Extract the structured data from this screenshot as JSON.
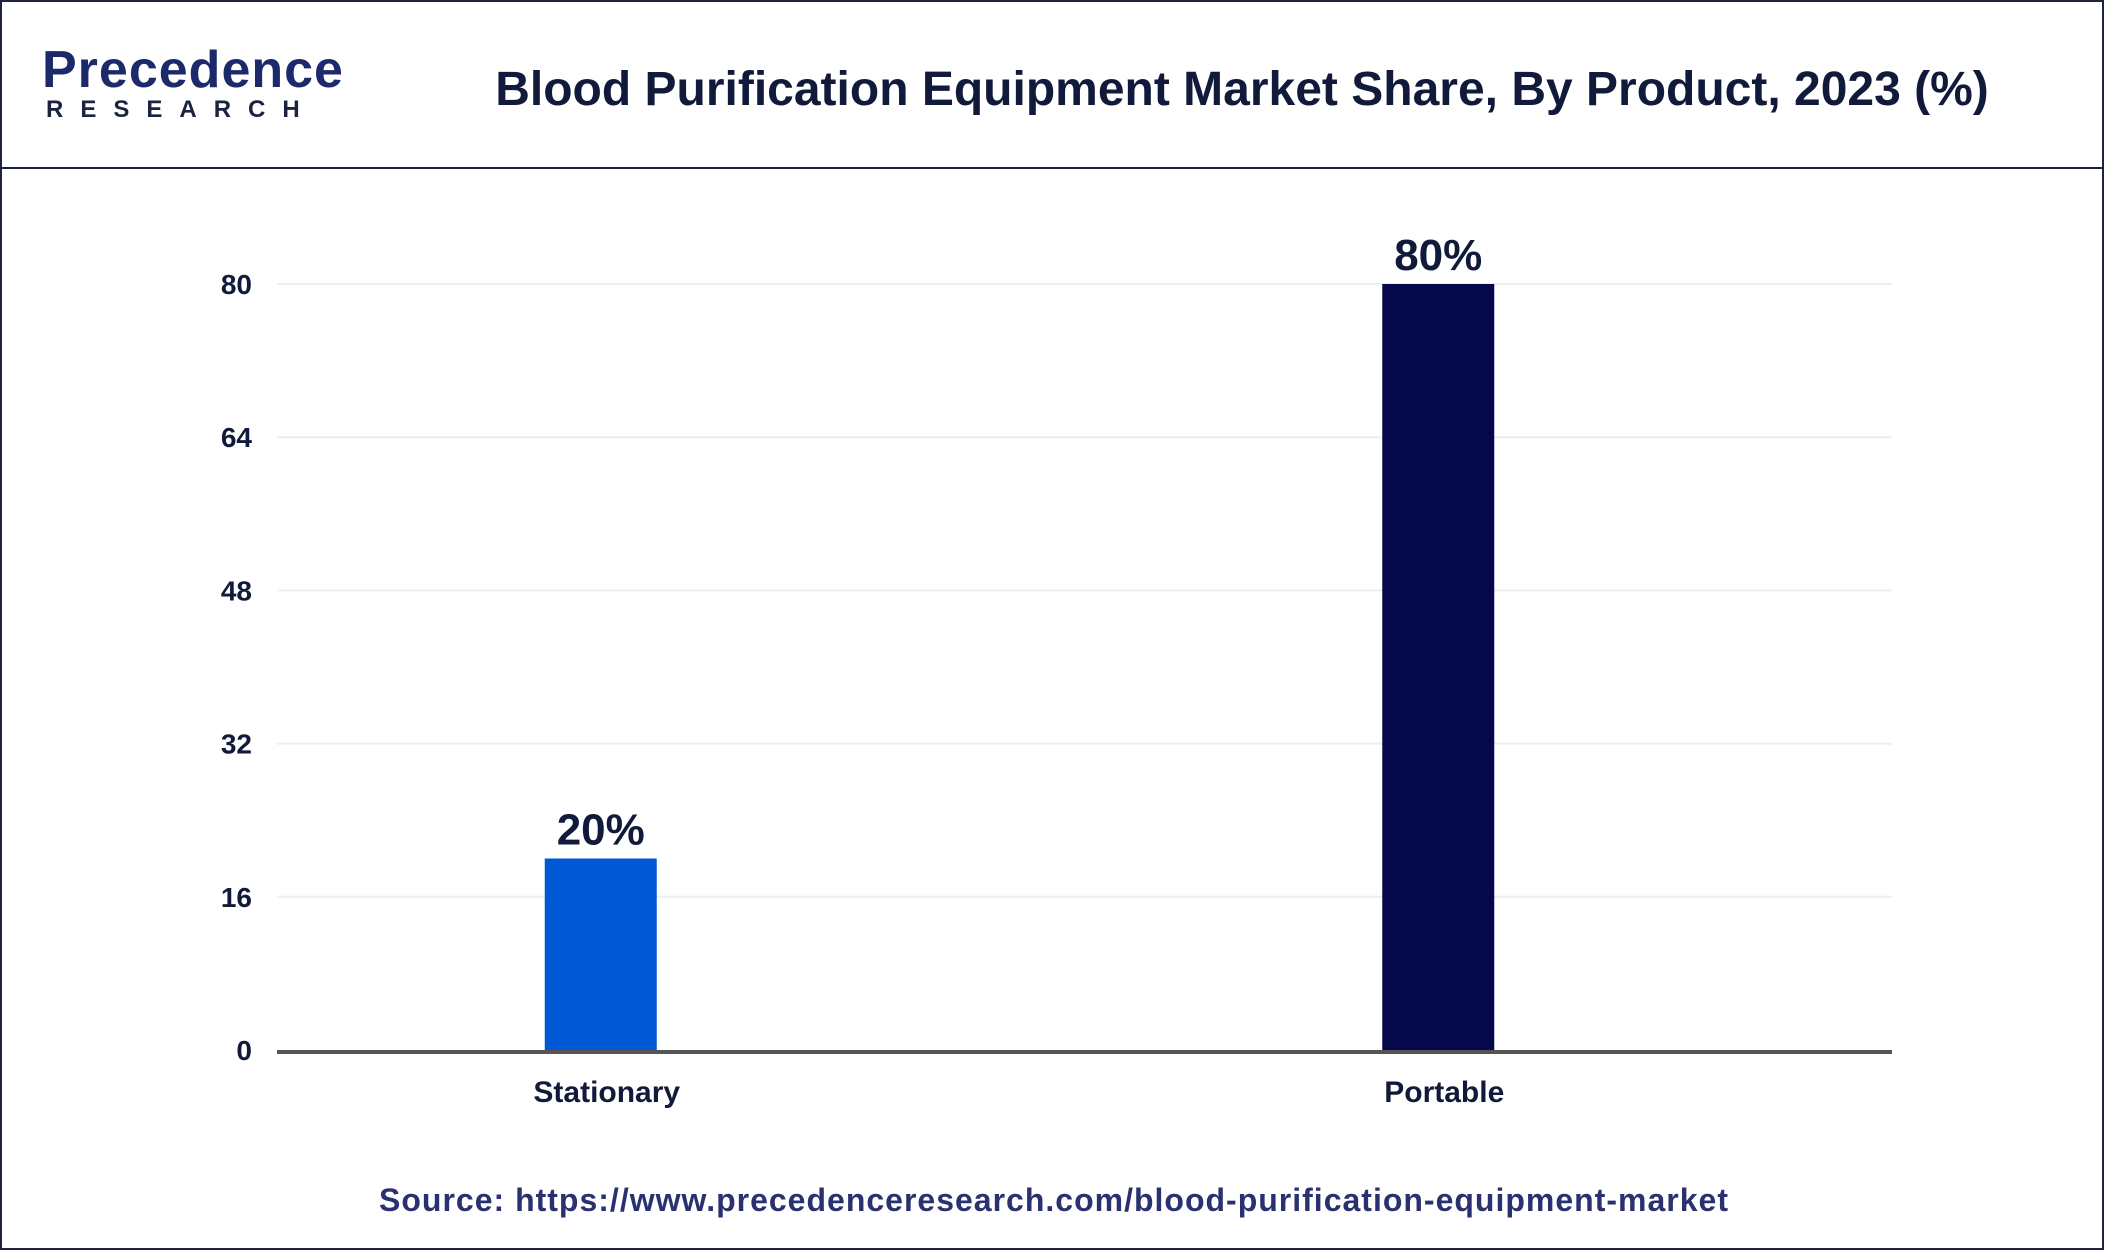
{
  "header": {
    "logo_word": "Precedence",
    "logo_sub": "RESEARCH",
    "title": "Blood Purification Equipment Market Share, By Product, 2023 (%)"
  },
  "footer": {
    "source": "Source: https://www.precedenceresearch.com/blood-purification-equipment-market"
  },
  "colors": {
    "stationary": "#0058d6",
    "portable": "#05084a",
    "axis": "#555555",
    "grid": "#eeeeee",
    "text": "#111a3a"
  },
  "chart_data": {
    "type": "bar",
    "title": "Blood Purification Equipment Market Share, By Product, 2023 (%)",
    "categories": [
      "Stationary",
      "Portable"
    ],
    "values": [
      20,
      80
    ],
    "data_labels": [
      "20%",
      "80%"
    ],
    "bar_colors": [
      "#0058d6",
      "#05084a"
    ],
    "xlabel": "",
    "ylabel": "",
    "ylim": [
      0,
      80
    ],
    "yticks": [
      0,
      16,
      32,
      48,
      64,
      80
    ],
    "grid": true,
    "legend": "none"
  }
}
